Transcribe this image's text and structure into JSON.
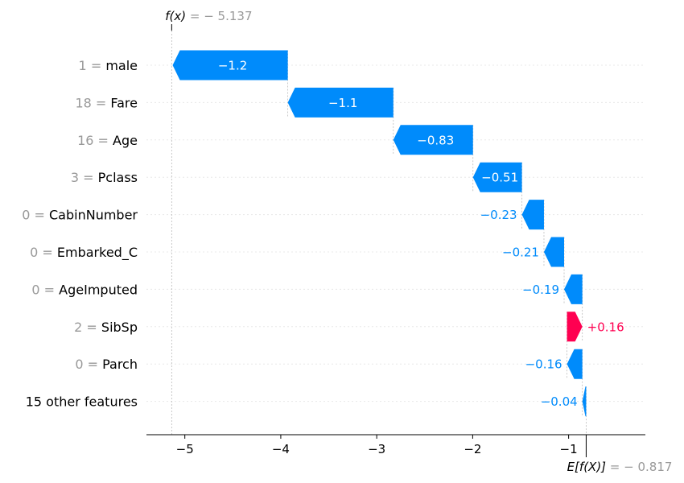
{
  "chart_data": {
    "type": "waterfall",
    "fx_label": "f(x)",
    "fx_value": "− 5.137",
    "efx_label": "E[f(X)]",
    "efx_value": "− 0.817",
    "base_value": -0.817,
    "output_value": -5.137,
    "xlim": [
      -5.4,
      -0.2
    ],
    "xticks": [
      {
        "value": -5,
        "label": "−5"
      },
      {
        "value": -4,
        "label": "−4"
      },
      {
        "value": -3,
        "label": "−3"
      },
      {
        "value": -2,
        "label": "−2"
      },
      {
        "value": -1,
        "label": "−1"
      }
    ],
    "features": [
      {
        "value": "1",
        "name": "male",
        "shap": -1.2,
        "label": "−1.2"
      },
      {
        "value": "18",
        "name": "Fare",
        "shap": -1.1,
        "label": "−1.1"
      },
      {
        "value": "16",
        "name": "Age",
        "shap": -0.83,
        "label": "−0.83"
      },
      {
        "value": "3",
        "name": "Pclass",
        "shap": -0.51,
        "label": "−0.51"
      },
      {
        "value": "0",
        "name": "CabinNumber",
        "shap": -0.23,
        "label": "−0.23"
      },
      {
        "value": "0",
        "name": "Embarked_C",
        "shap": -0.21,
        "label": "−0.21"
      },
      {
        "value": "0",
        "name": "AgeImputed",
        "shap": -0.19,
        "label": "−0.19"
      },
      {
        "value": "2",
        "name": "SibSp",
        "shap": 0.16,
        "label": "+0.16"
      },
      {
        "value": "0",
        "name": "Parch",
        "shap": -0.16,
        "label": "−0.16"
      },
      {
        "value": "",
        "name": "15 other features",
        "shap": -0.04,
        "label": "−0.04"
      }
    ],
    "colors": {
      "negative": "#008bfb",
      "positive": "#ff0051",
      "muted_text": "#999999",
      "grid": "#cccccc"
    }
  }
}
